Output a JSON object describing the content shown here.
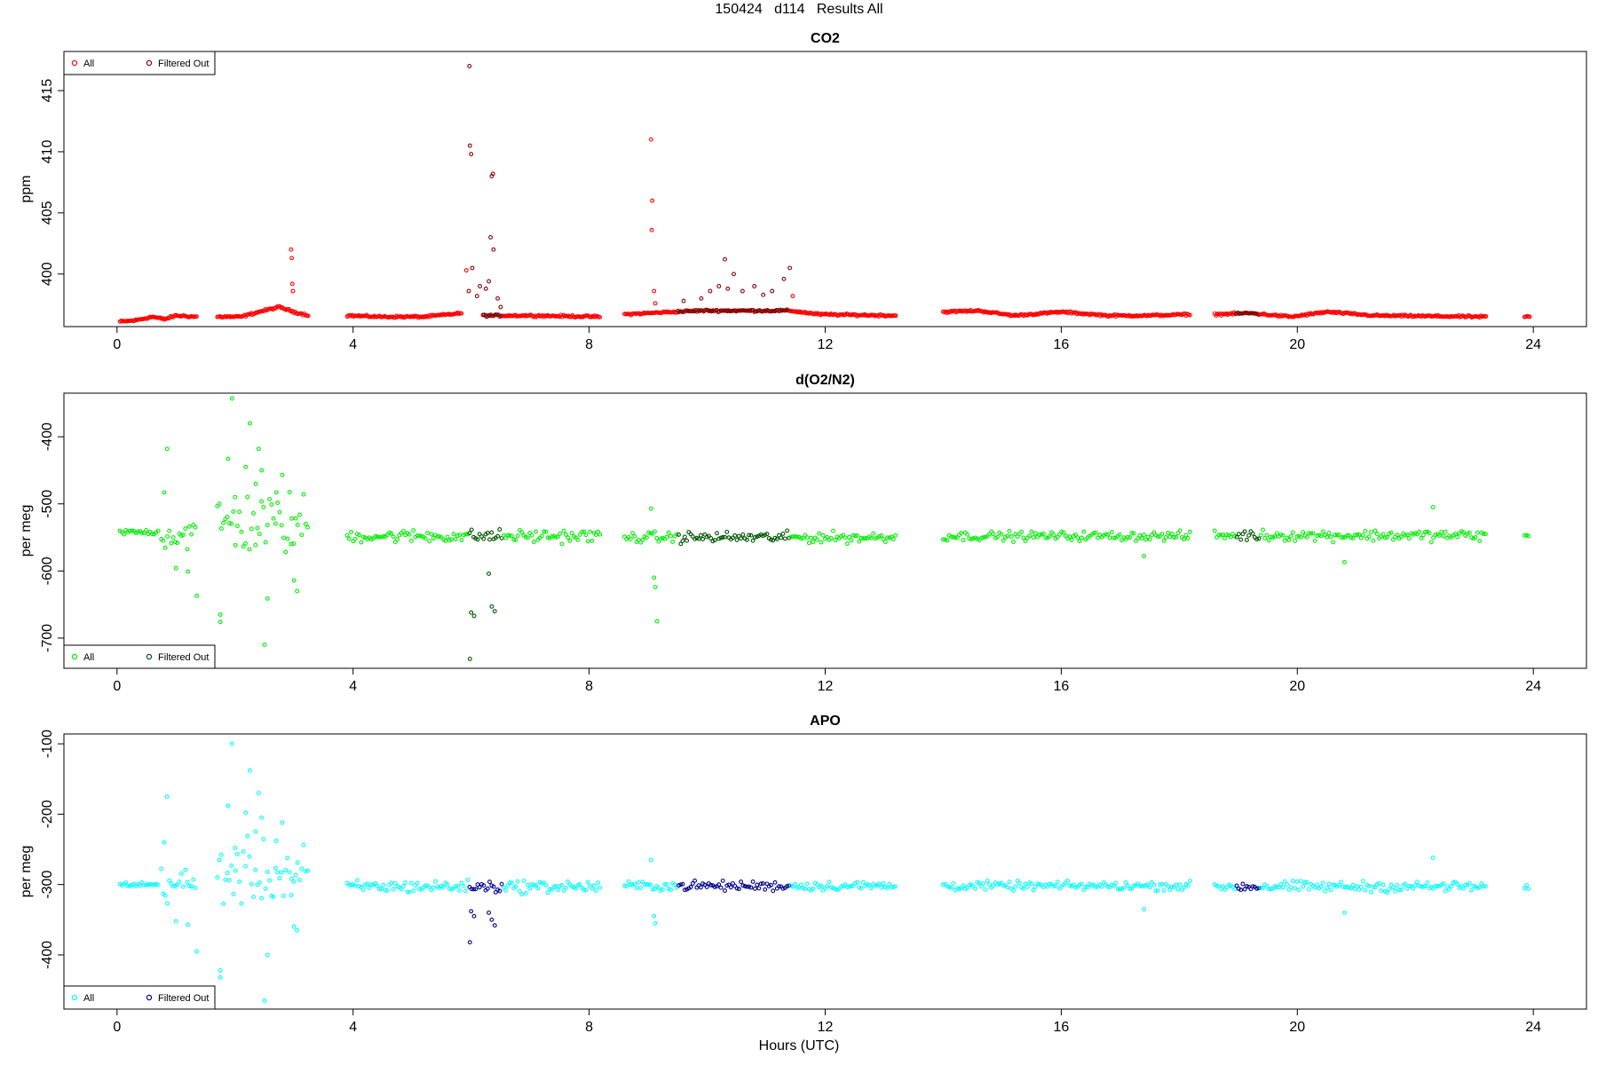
{
  "page_title": "150424   d114   Results All",
  "xlabel": "Hours (UTC)",
  "chart_data": [
    {
      "type": "scatter",
      "title": "CO2",
      "ylabel": "ppm",
      "xlim": [
        -0.9,
        24.9
      ],
      "ylim": [
        395.7,
        418.2
      ],
      "xticks": [
        "0",
        "4",
        "8",
        "12",
        "16",
        "20",
        "24"
      ],
      "yticks": [
        "400",
        "405",
        "410",
        "415"
      ],
      "legend_position": "top-left",
      "colors": {
        "all": "#ff0000",
        "filtered": "#8b0000"
      },
      "legend": [
        "All",
        "Filtered Out"
      ],
      "baseline_segments": [
        {
          "x": [
            0.05,
            1.35
          ],
          "pts": [
            [
              0.05,
              396.1
            ],
            [
              0.3,
              396.2
            ],
            [
              0.6,
              396.5
            ],
            [
              0.8,
              396.3
            ],
            [
              1.0,
              396.6
            ],
            [
              1.35,
              396.5
            ]
          ]
        },
        {
          "x": [
            1.7,
            3.25
          ],
          "pts": [
            [
              1.7,
              396.5
            ],
            [
              2.1,
              396.5
            ],
            [
              2.4,
              396.9
            ],
            [
              2.75,
              397.3
            ],
            [
              3.0,
              396.9
            ],
            [
              3.25,
              396.6
            ]
          ]
        },
        {
          "x": [
            3.9,
            5.85
          ],
          "pts": [
            [
              3.9,
              396.6
            ],
            [
              4.5,
              396.5
            ],
            [
              5.2,
              396.5
            ],
            [
              5.85,
              396.8
            ]
          ]
        },
        {
          "x": [
            6.2,
            8.2
          ],
          "pts": [
            [
              6.2,
              396.6
            ],
            [
              7.0,
              396.6
            ],
            [
              8.2,
              396.5
            ]
          ]
        },
        {
          "x": [
            8.6,
            13.2
          ],
          "pts": [
            [
              8.6,
              396.7
            ],
            [
              9.4,
              396.9
            ],
            [
              9.9,
              397.0
            ],
            [
              11.4,
              397.0
            ],
            [
              11.9,
              396.7
            ],
            [
              13.2,
              396.6
            ]
          ]
        },
        {
          "x": [
            14.0,
            18.2
          ],
          "pts": [
            [
              14.0,
              396.9
            ],
            [
              14.6,
              397.0
            ],
            [
              15.2,
              396.6
            ],
            [
              16.0,
              396.9
            ],
            [
              16.8,
              396.6
            ],
            [
              17.5,
              396.6
            ],
            [
              18.2,
              396.7
            ]
          ]
        },
        {
          "x": [
            18.6,
            23.2
          ],
          "pts": [
            [
              18.6,
              396.7
            ],
            [
              19.2,
              396.8
            ],
            [
              19.9,
              396.5
            ],
            [
              20.5,
              396.9
            ],
            [
              21.3,
              396.6
            ],
            [
              23.2,
              396.5
            ]
          ]
        },
        {
          "x": [
            23.85,
            23.95
          ],
          "pts": [
            [
              23.85,
              396.5
            ],
            [
              23.95,
              396.5
            ]
          ]
        }
      ],
      "spikes": [
        [
          2.95,
          402.0
        ],
        [
          2.96,
          401.3
        ],
        [
          2.97,
          399.2
        ],
        [
          2.98,
          398.6
        ],
        [
          5.92,
          400.3
        ],
        [
          5.96,
          398.6
        ],
        [
          5.97,
          417.0
        ],
        [
          5.98,
          410.5
        ],
        [
          6.0,
          409.8
        ],
        [
          6.02,
          400.5
        ],
        [
          6.1,
          398.2
        ],
        [
          6.15,
          399.0
        ],
        [
          6.25,
          398.8
        ],
        [
          6.3,
          399.4
        ],
        [
          6.33,
          403.0
        ],
        [
          6.35,
          408.0
        ],
        [
          6.37,
          408.2
        ],
        [
          6.38,
          402.0
        ],
        [
          6.45,
          398.0
        ],
        [
          6.5,
          397.3
        ],
        [
          9.05,
          411.0
        ],
        [
          9.07,
          406.0
        ],
        [
          9.06,
          403.6
        ],
        [
          9.1,
          398.6
        ],
        [
          9.12,
          397.6
        ],
        [
          9.6,
          397.8
        ],
        [
          9.9,
          398.0
        ],
        [
          10.05,
          398.6
        ],
        [
          10.2,
          399.0
        ],
        [
          10.3,
          401.2
        ],
        [
          10.35,
          398.8
        ],
        [
          10.45,
          400.0
        ],
        [
          10.6,
          398.6
        ],
        [
          10.8,
          399.0
        ],
        [
          10.95,
          398.3
        ],
        [
          11.1,
          398.6
        ],
        [
          11.3,
          399.6
        ],
        [
          11.4,
          400.5
        ],
        [
          11.45,
          398.2
        ]
      ],
      "filtered_ranges": [
        [
          5.95,
          6.55
        ],
        [
          9.5,
          11.4
        ],
        [
          18.95,
          19.35
        ]
      ]
    },
    {
      "type": "scatter",
      "title": "d(O2/N2)",
      "ylabel": "per meg",
      "xlim": [
        -0.9,
        24.9
      ],
      "ylim": [
        -745,
        -335
      ],
      "xticks": [
        "0",
        "4",
        "8",
        "12",
        "16",
        "20",
        "24"
      ],
      "yticks": [
        "-400",
        "-500",
        "-600",
        "-700"
      ],
      "legend_position": "bottom-left",
      "colors": {
        "all": "#00ee00",
        "filtered": "#005500"
      },
      "legend": [
        "All",
        "Filtered Out"
      ],
      "segments": [
        {
          "x": [
            0.05,
            0.7
          ],
          "center": -542,
          "spread": 6
        },
        {
          "x": [
            0.75,
            1.35
          ],
          "center": -545,
          "spread": 40
        },
        {
          "x": [
            1.7,
            3.25
          ],
          "center": -530,
          "spread": 70
        },
        {
          "x": [
            3.9,
            8.2
          ],
          "center": -548,
          "spread": 14
        },
        {
          "x": [
            8.6,
            13.2
          ],
          "center": -550,
          "spread": 12
        },
        {
          "x": [
            14.0,
            18.2
          ],
          "center": -548,
          "spread": 10
        },
        {
          "x": [
            18.6,
            23.2
          ],
          "center": -547,
          "spread": 12
        },
        {
          "x": [
            23.85,
            23.95
          ],
          "center": -548,
          "spread": 6
        }
      ],
      "outliers": [
        [
          0.8,
          -483
        ],
        [
          0.85,
          -418
        ],
        [
          1.0,
          -596
        ],
        [
          1.2,
          -601
        ],
        [
          1.35,
          -637
        ],
        [
          1.75,
          -665
        ],
        [
          1.75,
          -676
        ],
        [
          1.95,
          -343
        ],
        [
          1.88,
          -433
        ],
        [
          2.0,
          -490
        ],
        [
          2.18,
          -445
        ],
        [
          2.25,
          -380
        ],
        [
          2.35,
          -470
        ],
        [
          2.4,
          -418
        ],
        [
          2.45,
          -450
        ],
        [
          2.5,
          -710
        ],
        [
          2.55,
          -641
        ],
        [
          2.7,
          -483
        ],
        [
          2.8,
          -457
        ],
        [
          2.95,
          -560
        ],
        [
          3.0,
          -614
        ],
        [
          3.05,
          -630
        ],
        [
          5.98,
          -731
        ],
        [
          6.0,
          -662
        ],
        [
          6.05,
          -667
        ],
        [
          6.3,
          -604
        ],
        [
          6.35,
          -653
        ],
        [
          6.4,
          -660
        ],
        [
          9.05,
          -507
        ],
        [
          9.1,
          -610
        ],
        [
          9.12,
          -624
        ],
        [
          9.15,
          -675
        ],
        [
          17.4,
          -578
        ],
        [
          20.8,
          -587
        ],
        [
          22.3,
          -505
        ]
      ],
      "filtered_ranges": [
        [
          5.95,
          6.55
        ],
        [
          9.5,
          11.4
        ],
        [
          18.95,
          19.35
        ]
      ]
    },
    {
      "type": "scatter",
      "title": "APO",
      "ylabel": "per meg",
      "xlim": [
        -0.9,
        24.9
      ],
      "ylim": [
        -477,
        -86
      ],
      "xticks": [
        "0",
        "4",
        "8",
        "12",
        "16",
        "20",
        "24"
      ],
      "yticks": [
        "-100",
        "-200",
        "-300",
        "-400"
      ],
      "legend_position": "bottom-left",
      "colors": {
        "all": "#00ffff",
        "filtered": "#00008b"
      },
      "legend": [
        "All",
        "Filtered Out"
      ],
      "segments": [
        {
          "x": [
            0.05,
            0.7
          ],
          "center": -300,
          "spread": 5
        },
        {
          "x": [
            0.75,
            1.35
          ],
          "center": -300,
          "spread": 38
        },
        {
          "x": [
            1.7,
            3.25
          ],
          "center": -285,
          "spread": 65
        },
        {
          "x": [
            3.9,
            8.2
          ],
          "center": -303,
          "spread": 13
        },
        {
          "x": [
            8.6,
            13.2
          ],
          "center": -302,
          "spread": 10
        },
        {
          "x": [
            14.0,
            18.2
          ],
          "center": -302,
          "spread": 9
        },
        {
          "x": [
            18.6,
            23.2
          ],
          "center": -303,
          "spread": 11
        },
        {
          "x": [
            23.85,
            23.95
          ],
          "center": -305,
          "spread": 6
        }
      ],
      "outliers": [
        [
          0.8,
          -240
        ],
        [
          0.85,
          -175
        ],
        [
          1.0,
          -352
        ],
        [
          1.2,
          -357
        ],
        [
          1.35,
          -395
        ],
        [
          1.75,
          -422
        ],
        [
          1.75,
          -432
        ],
        [
          1.95,
          -100
        ],
        [
          1.88,
          -188
        ],
        [
          2.0,
          -248
        ],
        [
          2.18,
          -198
        ],
        [
          2.25,
          -138
        ],
        [
          2.35,
          -225
        ],
        [
          2.4,
          -170
        ],
        [
          2.45,
          -205
        ],
        [
          2.5,
          -465
        ],
        [
          2.55,
          -400
        ],
        [
          2.7,
          -238
        ],
        [
          2.8,
          -212
        ],
        [
          2.95,
          -315
        ],
        [
          3.0,
          -360
        ],
        [
          3.05,
          -365
        ],
        [
          5.98,
          -382
        ],
        [
          6.0,
          -338
        ],
        [
          6.05,
          -345
        ],
        [
          6.3,
          -340
        ],
        [
          6.35,
          -350
        ],
        [
          6.4,
          -358
        ],
        [
          9.05,
          -265
        ],
        [
          9.1,
          -345
        ],
        [
          9.12,
          -355
        ],
        [
          17.4,
          -335
        ],
        [
          20.8,
          -340
        ],
        [
          22.3,
          -262
        ]
      ],
      "filtered_ranges": [
        [
          5.95,
          6.55
        ],
        [
          9.5,
          11.4
        ],
        [
          18.95,
          19.35
        ]
      ]
    }
  ]
}
